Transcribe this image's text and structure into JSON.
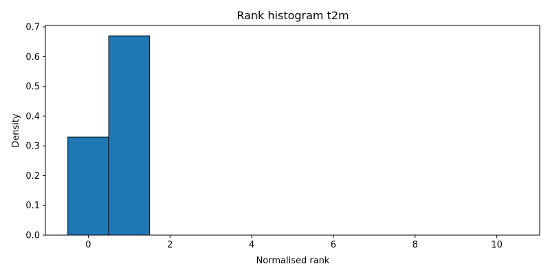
{
  "chart_data": {
    "type": "bar",
    "title": "Rank histogram t2m",
    "xlabel": "Normalised rank",
    "ylabel": "Density",
    "xlim": [
      -1.05,
      11.05
    ],
    "ylim": [
      0,
      0.705
    ],
    "xticks": [
      0,
      2,
      4,
      6,
      8,
      10
    ],
    "yticks": [
      0.0,
      0.1,
      0.2,
      0.3,
      0.4,
      0.5,
      0.6,
      0.7
    ],
    "ytick_labels": [
      "0.0",
      "0.1",
      "0.2",
      "0.3",
      "0.4",
      "0.5",
      "0.6",
      "0.7"
    ],
    "bins": [
      {
        "center": 0,
        "value": 0.33
      },
      {
        "center": 1,
        "value": 0.67
      },
      {
        "center": 2,
        "value": 0.0
      },
      {
        "center": 3,
        "value": 0.0
      },
      {
        "center": 4,
        "value": 0.0
      },
      {
        "center": 5,
        "value": 0.0
      },
      {
        "center": 6,
        "value": 0.0
      },
      {
        "center": 7,
        "value": 0.0
      },
      {
        "center": 8,
        "value": 0.0
      },
      {
        "center": 9,
        "value": 0.0
      },
      {
        "center": 10,
        "value": 0.0
      }
    ],
    "bar_width": 1,
    "bar_color": "#1f77b4",
    "edge_color": "#000000",
    "grid": false,
    "legend": "none"
  }
}
